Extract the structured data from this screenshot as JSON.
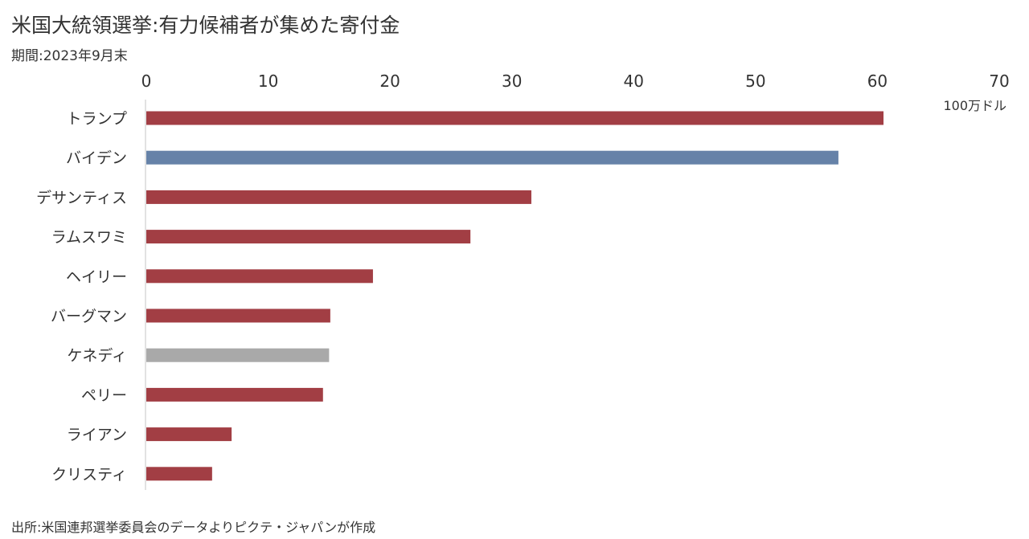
{
  "header": {
    "title": "米国大統領選挙:有力候補者が集めた寄付金",
    "subtitle": "期間:2023年9月末"
  },
  "footer": {
    "source": "出所:米国連邦選挙委員会のデータよりピクテ・ジャパンが作成"
  },
  "chart_data": {
    "type": "bar",
    "orientation": "horizontal",
    "title": "米国大統領選挙:有力候補者が集めた寄付金",
    "subtitle": "期間:2023年9月末",
    "unit_label": "100万ドル",
    "xaxis_position": "top",
    "xlim": [
      0,
      70
    ],
    "xticks": [
      0,
      10,
      20,
      30,
      40,
      50,
      60,
      70
    ],
    "grid": false,
    "categories": [
      "トランプ",
      "バイデン",
      "デサンティス",
      "ラムスワミ",
      "ヘイリー",
      "バーグマン",
      "ケネディ",
      "ペリー",
      "ライアン",
      "クリスティ"
    ],
    "values": [
      60.5,
      56.8,
      31.6,
      26.6,
      18.6,
      15.1,
      15.0,
      14.5,
      7.0,
      5.4
    ],
    "colors": [
      "#a23e44",
      "#6682a8",
      "#a23e44",
      "#a23e44",
      "#a23e44",
      "#a23e44",
      "#a9a9a9",
      "#a23e44",
      "#a23e44",
      "#a23e44"
    ],
    "axis_line_color": "#d9d9d9"
  }
}
